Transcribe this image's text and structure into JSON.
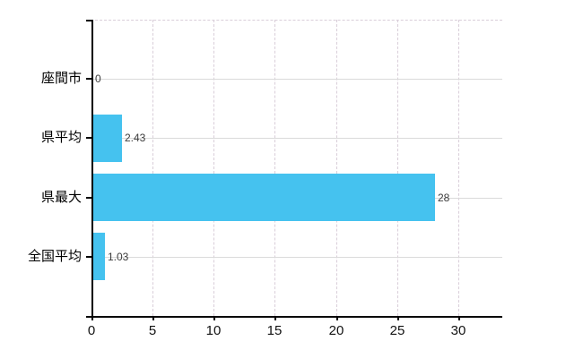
{
  "chart_data": {
    "type": "bar",
    "orientation": "horizontal",
    "categories": [
      "座間市",
      "県平均",
      "県最大",
      "全国平均"
    ],
    "values": [
      0,
      2.43,
      28,
      1.03
    ],
    "value_labels": [
      "0",
      "2.43",
      "28",
      "1.03"
    ],
    "x_ticks": [
      0,
      5,
      10,
      15,
      20,
      25,
      30
    ],
    "x_tick_labels": [
      "0",
      "5",
      "10",
      "15",
      "20",
      "25",
      "30"
    ],
    "xlim": [
      0,
      33.6
    ],
    "grid": true,
    "legend": "none",
    "colors": {
      "bar": "#45c2ef",
      "h_gridline": "#dadada",
      "v_gridline": "#d9ced9",
      "axis": "#000000",
      "value_text": "#3c3c3c",
      "label_text": "#000000"
    }
  }
}
